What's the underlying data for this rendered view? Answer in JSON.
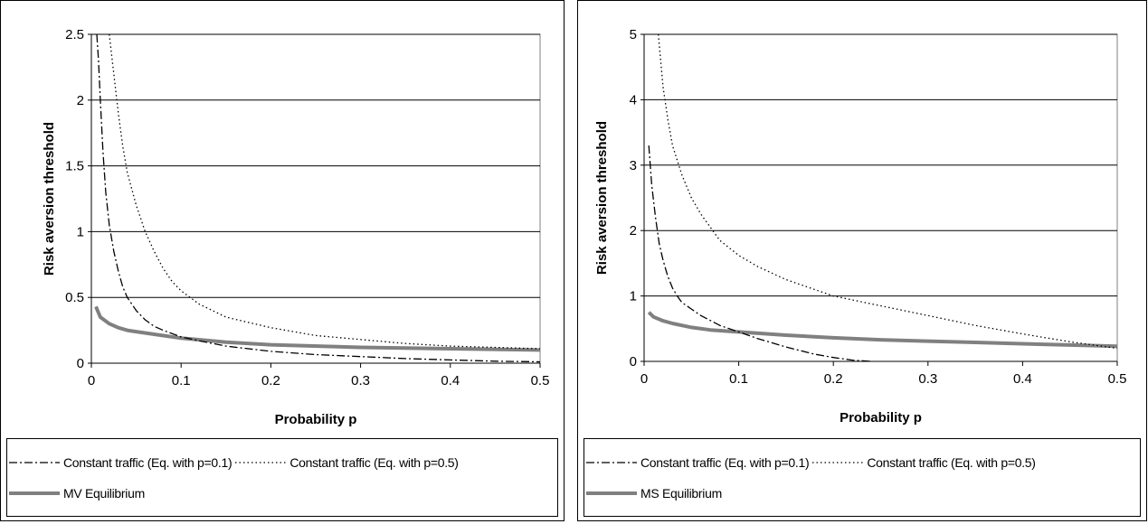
{
  "chart_data": [
    {
      "type": "line",
      "xlabel": "Probability p",
      "ylabel": "Risk aversion threshold",
      "xlim": [
        0,
        0.5
      ],
      "ylim": [
        0,
        2.5
      ],
      "grid": "horizontal",
      "legend_position": "bottom",
      "x_ticks": [
        "0",
        "0.1",
        "0.2",
        "0.3",
        "0.4",
        "0.5"
      ],
      "y_ticks": [
        "0",
        "0.5",
        "1",
        "1.5",
        "2",
        "2.5"
      ],
      "series": [
        {
          "name": "Constant traffic (Eq. with p=0.1)",
          "style": "dashdot",
          "color": "#000000",
          "x": [
            0.006,
            0.008,
            0.01,
            0.013,
            0.016,
            0.02,
            0.025,
            0.03,
            0.035,
            0.04,
            0.05,
            0.06,
            0.07,
            0.08,
            0.1,
            0.12,
            0.15,
            0.2,
            0.25,
            0.3,
            0.35,
            0.4,
            0.45,
            0.5
          ],
          "y": [
            2.5,
            2.3,
            2.0,
            1.6,
            1.3,
            1.05,
            0.85,
            0.7,
            0.58,
            0.5,
            0.4,
            0.33,
            0.28,
            0.25,
            0.2,
            0.17,
            0.13,
            0.09,
            0.065,
            0.05,
            0.035,
            0.025,
            0.015,
            0.01
          ]
        },
        {
          "name": "Constant traffic (Eq. with p=0.5)",
          "style": "dotted",
          "color": "#000000",
          "x": [
            0.02,
            0.025,
            0.03,
            0.035,
            0.04,
            0.05,
            0.06,
            0.07,
            0.08,
            0.09,
            0.1,
            0.12,
            0.15,
            0.2,
            0.25,
            0.3,
            0.35,
            0.4,
            0.45,
            0.5
          ],
          "y": [
            2.5,
            2.2,
            1.9,
            1.65,
            1.45,
            1.2,
            1.0,
            0.85,
            0.72,
            0.62,
            0.55,
            0.45,
            0.35,
            0.27,
            0.21,
            0.18,
            0.15,
            0.13,
            0.12,
            0.11
          ]
        },
        {
          "name": "MV Equilibrium",
          "style": "thick-solid",
          "color": "#808080",
          "x": [
            0.005,
            0.01,
            0.02,
            0.03,
            0.04,
            0.05,
            0.07,
            0.1,
            0.15,
            0.2,
            0.3,
            0.4,
            0.5
          ],
          "y": [
            0.43,
            0.35,
            0.3,
            0.27,
            0.25,
            0.24,
            0.22,
            0.19,
            0.16,
            0.14,
            0.12,
            0.11,
            0.1
          ]
        }
      ]
    },
    {
      "type": "line",
      "xlabel": "Probability p",
      "ylabel": "Risk aversion threshold",
      "xlim": [
        0,
        0.5
      ],
      "ylim": [
        0,
        5
      ],
      "grid": "horizontal",
      "legend_position": "bottom",
      "x_ticks": [
        "0",
        "0.1",
        "0.2",
        "0.3",
        "0.4",
        "0.5"
      ],
      "y_ticks": [
        "0",
        "1",
        "2",
        "3",
        "4",
        "5"
      ],
      "series": [
        {
          "name": "Constant traffic (Eq. with p=0.1)",
          "style": "dashdot",
          "color": "#000000",
          "x": [
            0.005,
            0.008,
            0.012,
            0.016,
            0.02,
            0.025,
            0.03,
            0.035,
            0.04,
            0.05,
            0.06,
            0.08,
            0.1,
            0.12,
            0.15,
            0.18,
            0.2,
            0.22,
            0.24
          ],
          "y": [
            3.3,
            2.7,
            2.2,
            1.8,
            1.55,
            1.3,
            1.12,
            1.0,
            0.9,
            0.8,
            0.7,
            0.55,
            0.45,
            0.35,
            0.22,
            0.11,
            0.06,
            0.02,
            0.0
          ]
        },
        {
          "name": "Constant traffic (Eq. with p=0.5)",
          "style": "dotted",
          "color": "#000000",
          "x": [
            0.015,
            0.02,
            0.025,
            0.03,
            0.04,
            0.05,
            0.06,
            0.08,
            0.1,
            0.12,
            0.15,
            0.2,
            0.25,
            0.3,
            0.35,
            0.4,
            0.45,
            0.5
          ],
          "y": [
            5.0,
            4.2,
            3.7,
            3.3,
            2.85,
            2.5,
            2.25,
            1.85,
            1.62,
            1.45,
            1.25,
            1.0,
            0.85,
            0.7,
            0.55,
            0.42,
            0.3,
            0.2
          ]
        },
        {
          "name": "MS Equilibrium",
          "style": "thick-solid",
          "color": "#808080",
          "x": [
            0.005,
            0.01,
            0.02,
            0.03,
            0.05,
            0.07,
            0.1,
            0.15,
            0.2,
            0.25,
            0.3,
            0.35,
            0.4,
            0.45,
            0.5
          ],
          "y": [
            0.75,
            0.68,
            0.62,
            0.58,
            0.52,
            0.48,
            0.45,
            0.4,
            0.36,
            0.33,
            0.31,
            0.29,
            0.27,
            0.25,
            0.23
          ]
        }
      ]
    }
  ]
}
